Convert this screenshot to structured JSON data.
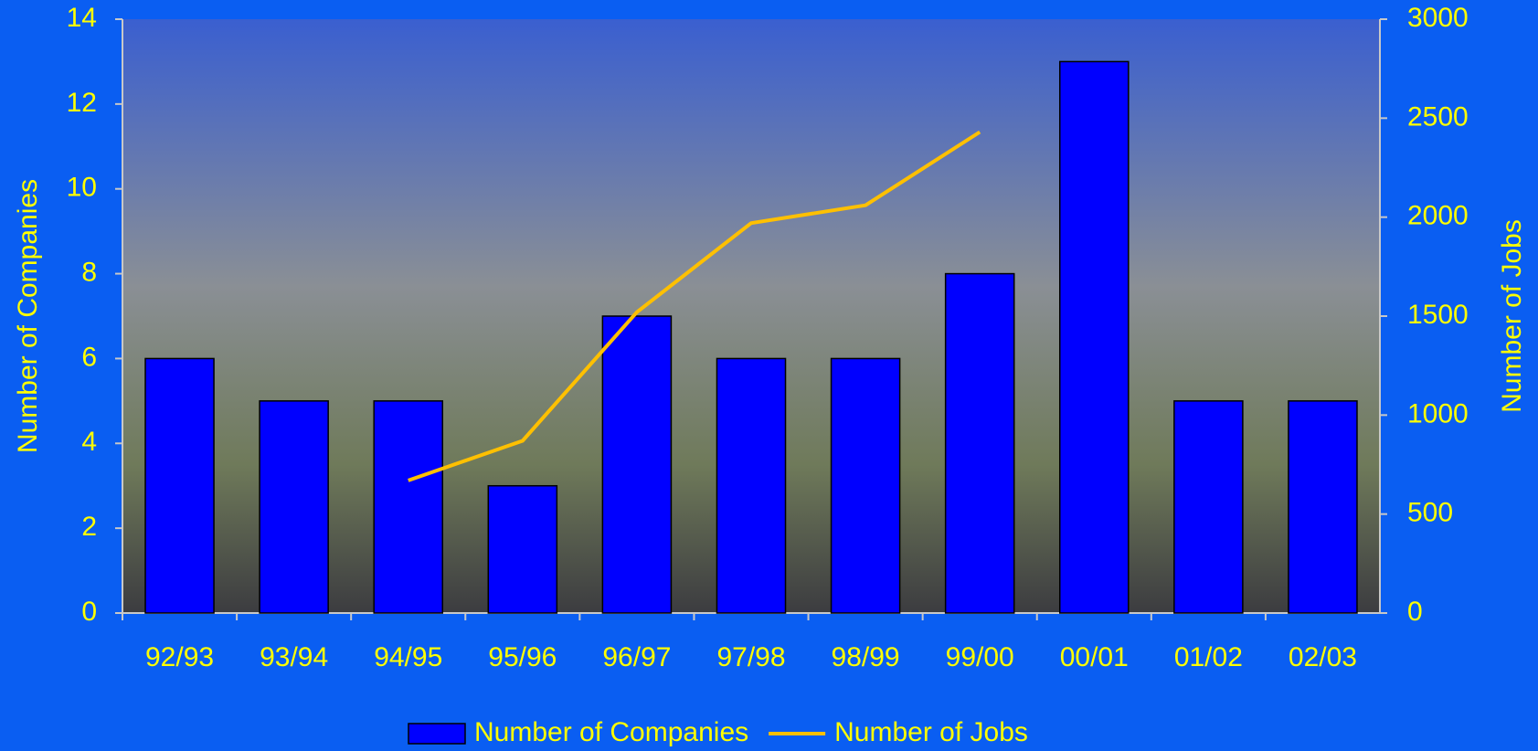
{
  "chart_data": {
    "type": "bar_line",
    "categories": [
      "92/93",
      "93/94",
      "94/95",
      "95/96",
      "96/97",
      "97/98",
      "98/99",
      "99/00",
      "00/01",
      "01/02",
      "02/03"
    ],
    "y_label": "Number of Companies",
    "y2_label": "Number of Jobs",
    "ylim": [
      0,
      14
    ],
    "yticks": [
      0,
      2,
      4,
      6,
      8,
      10,
      12,
      14
    ],
    "y2lim": [
      0,
      3000
    ],
    "y2ticks": [
      0,
      500,
      1000,
      1500,
      2000,
      2500,
      3000
    ],
    "series": [
      {
        "name": "Number of Companies",
        "type": "bar",
        "color": "#0000ff",
        "values": [
          6,
          5,
          5,
          3,
          7,
          6,
          6,
          8,
          13,
          5,
          5
        ]
      },
      {
        "name": "Number of Jobs",
        "type": "line",
        "axis": "y2",
        "color": "#ffc000",
        "values": [
          null,
          null,
          670,
          870,
          1520,
          1970,
          2060,
          2430,
          null,
          null,
          null
        ]
      }
    ]
  }
}
